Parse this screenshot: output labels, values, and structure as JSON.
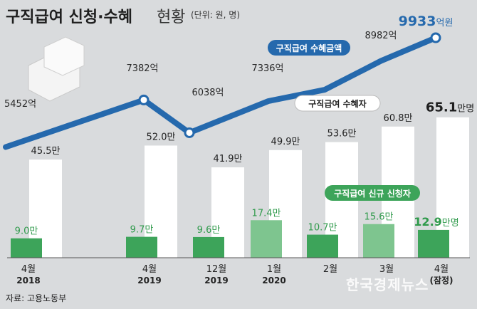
{
  "header": {
    "title": "구직급여 신청·수혜",
    "subtitle": "현황",
    "unit_note": "(단위: 원, 명)"
  },
  "source": "자료: 고용노동부",
  "watermark": "한국경제뉴스",
  "chart_data": {
    "type": "bar",
    "categories": [
      {
        "month": "4월",
        "year": "2018"
      },
      {
        "month": "4월",
        "year": "2019"
      },
      {
        "month": "12월",
        "year": "2019"
      },
      {
        "month": "1월",
        "year": "2020"
      },
      {
        "month": "2월",
        "year": ""
      },
      {
        "month": "3월",
        "year": ""
      },
      {
        "month": "4월",
        "year": "(잠정)"
      }
    ],
    "series": [
      {
        "name": "구직급여 수혜자",
        "type": "bar",
        "values": [
          45.5,
          52.0,
          41.9,
          49.9,
          53.6,
          60.8,
          65.1
        ],
        "labels": [
          "45.5만",
          "52.0만",
          "41.9만",
          "49.9만",
          "53.6만",
          "60.8만",
          "65.1"
        ],
        "last_suffix": "만명",
        "color": "#ffffff"
      },
      {
        "name": "구직급여 신규 신청자",
        "type": "bar",
        "values": [
          9.0,
          9.7,
          9.6,
          17.4,
          10.7,
          15.6,
          12.9
        ],
        "labels": [
          "9.0만",
          "9.7만",
          "9.6만",
          "17.4만",
          "10.7만",
          "15.6만",
          "12.9"
        ],
        "last_suffix": "만명",
        "color": "#3da45a"
      },
      {
        "name": "구직급여 수혜금액",
        "type": "line",
        "values": [
          5452,
          7382,
          6038,
          7336,
          7800,
          8982,
          9933
        ],
        "labels": [
          "5452억",
          "7382억",
          "6038억",
          "7336억",
          "",
          "8982억",
          "9933"
        ],
        "last_suffix": "억원",
        "color": "#2569ad"
      }
    ],
    "unit": "원, 명"
  },
  "colors": {
    "background": "#d9dbdd",
    "line": "#2569ad",
    "bar_white": "#ffffff",
    "bar_green": "#3da45a",
    "bar_green_light": "#7ec58f",
    "label_green": "#2f9a4b"
  }
}
